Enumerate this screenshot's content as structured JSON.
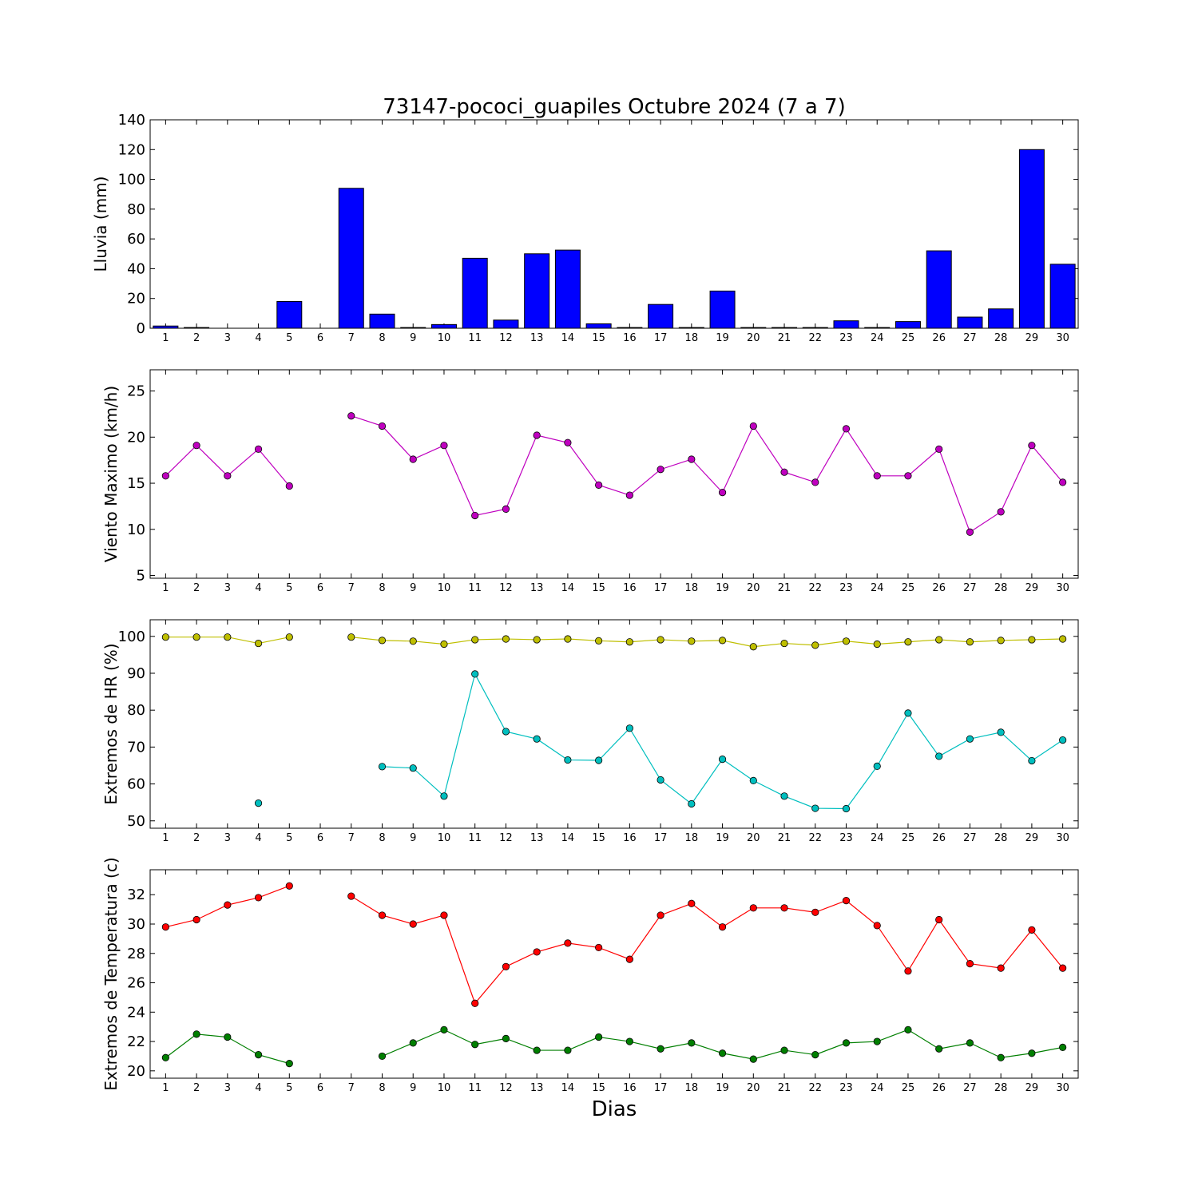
{
  "chart_data": [
    {
      "type": "bar",
      "title": "73147-pococi_guapiles Octubre 2024  (7 a 7)",
      "ylabel": "Lluvia (mm)",
      "xlabel": "",
      "ylim": [
        0,
        140
      ],
      "yticks": [
        0,
        20,
        40,
        60,
        80,
        100,
        120,
        140
      ],
      "categories": [
        "1",
        "2",
        "3",
        "4",
        "5",
        "6",
        "7",
        "8",
        "9",
        "10",
        "11",
        "12",
        "13",
        "14",
        "15",
        "16",
        "17",
        "18",
        "19",
        "20",
        "21",
        "22",
        "23",
        "24",
        "25",
        "26",
        "27",
        "28",
        "29",
        "30"
      ],
      "series": [
        {
          "values": [
            1.5,
            0.5,
            0,
            0,
            18,
            0,
            94,
            9.5,
            0.5,
            2.5,
            47,
            5.5,
            50,
            52.5,
            3,
            0.5,
            16,
            0.5,
            25,
            0.5,
            0.5,
            0.5,
            5,
            0.5,
            4.5,
            52,
            7.5,
            13,
            120,
            43
          ],
          "color": "#0000ff"
        }
      ]
    },
    {
      "type": "line",
      "ylabel": "Viento Maximo (km/h)",
      "xlabel": "",
      "ylim": [
        4.7,
        27.3
      ],
      "yticks": [
        5,
        10,
        15,
        20,
        25
      ],
      "x": [
        1,
        2,
        3,
        4,
        5,
        6,
        7,
        8,
        9,
        10,
        11,
        12,
        13,
        14,
        15,
        16,
        17,
        18,
        19,
        20,
        21,
        22,
        23,
        24,
        25,
        26,
        27,
        28,
        29,
        30
      ],
      "series": [
        {
          "values": [
            15.8,
            19.1,
            15.8,
            18.7,
            14.7,
            null,
            22.3,
            21.2,
            17.6,
            19.1,
            11.5,
            12.2,
            20.2,
            19.4,
            14.8,
            13.7,
            16.5,
            17.6,
            14.0,
            21.2,
            16.2,
            15.1,
            20.9,
            15.8,
            15.8,
            18.7,
            9.7,
            11.9,
            19.1,
            15.1
          ],
          "color": "#bf00bf"
        }
      ]
    },
    {
      "type": "line",
      "ylabel": "Extremos de HR (%)",
      "xlabel": "",
      "ylim": [
        48,
        104.5
      ],
      "yticks": [
        50,
        60,
        70,
        80,
        90,
        100
      ],
      "x": [
        1,
        2,
        3,
        4,
        5,
        6,
        7,
        8,
        9,
        10,
        11,
        12,
        13,
        14,
        15,
        16,
        17,
        18,
        19,
        20,
        21,
        22,
        23,
        24,
        25,
        26,
        27,
        28,
        29,
        30
      ],
      "series": [
        {
          "values": [
            99.8,
            99.8,
            99.8,
            98.1,
            99.8,
            null,
            99.8,
            98.9,
            98.7,
            97.9,
            99.1,
            99.3,
            99.1,
            99.3,
            98.8,
            98.5,
            99.1,
            98.7,
            98.9,
            97.2,
            98.1,
            97.6,
            98.7,
            97.9,
            98.5,
            99.1,
            98.5,
            98.9,
            99.1,
            99.3
          ],
          "color": "#bfbf00"
        },
        {
          "values": [
            null,
            null,
            null,
            54.8,
            null,
            null,
            null,
            64.7,
            64.3,
            56.7,
            89.8,
            74.2,
            72.2,
            66.5,
            66.4,
            75.1,
            61.1,
            54.6,
            66.7,
            60.9,
            56.7,
            53.4,
            53.3,
            64.8,
            79.2,
            67.5,
            72.2,
            74.0,
            66.3,
            71.9
          ],
          "color": "#00bfbf"
        }
      ]
    },
    {
      "type": "line",
      "ylabel": "Extremos de Temperatura (c)",
      "xlabel": "Dias",
      "ylim": [
        19.5,
        33.7
      ],
      "yticks": [
        20,
        22,
        24,
        26,
        28,
        30,
        32
      ],
      "x": [
        1,
        2,
        3,
        4,
        5,
        6,
        7,
        8,
        9,
        10,
        11,
        12,
        13,
        14,
        15,
        16,
        17,
        18,
        19,
        20,
        21,
        22,
        23,
        24,
        25,
        26,
        27,
        28,
        29,
        30
      ],
      "series": [
        {
          "values": [
            29.8,
            30.3,
            31.3,
            31.8,
            32.6,
            null,
            31.9,
            30.6,
            30.0,
            30.6,
            24.6,
            27.1,
            28.1,
            28.7,
            28.4,
            27.6,
            30.6,
            31.4,
            29.8,
            31.1,
            31.1,
            30.8,
            31.6,
            29.9,
            26.8,
            30.3,
            27.3,
            27.0,
            29.6,
            27.0
          ],
          "color": "#ff0000"
        },
        {
          "values": [
            20.9,
            22.5,
            22.3,
            21.1,
            20.5,
            null,
            null,
            21.0,
            21.9,
            22.8,
            21.8,
            22.2,
            21.4,
            21.4,
            22.3,
            22.0,
            21.5,
            21.9,
            21.2,
            20.8,
            21.4,
            21.1,
            21.9,
            22.0,
            22.8,
            21.5,
            21.9,
            20.9,
            21.2,
            21.6
          ],
          "color": "#007f00"
        }
      ]
    }
  ]
}
